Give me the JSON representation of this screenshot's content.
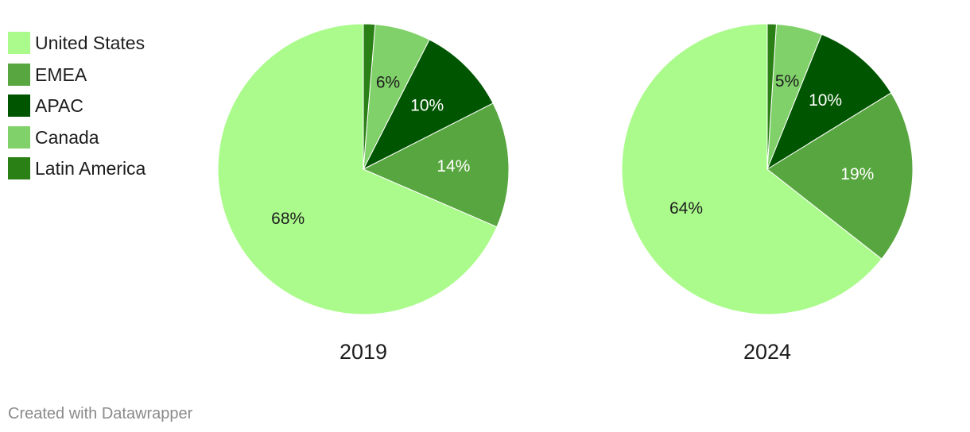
{
  "legend": {
    "items": [
      {
        "label": "United States",
        "color": "#abfb8c"
      },
      {
        "label": "EMEA",
        "color": "#58a63f"
      },
      {
        "label": "APAC",
        "color": "#005600"
      },
      {
        "label": "Canada",
        "color": "#80d16a"
      },
      {
        "label": "Latin America",
        "color": "#2a7f15"
      }
    ]
  },
  "chart_data": [
    {
      "type": "pie",
      "title": "2019",
      "labels": [
        "United States",
        "EMEA",
        "APAC",
        "Canada",
        "Latin America"
      ],
      "values": [
        68.5,
        14.0,
        10.0,
        6.2,
        1.3
      ],
      "slice_labels": [
        "68%",
        "14%",
        "10%",
        "6%",
        ""
      ],
      "colors": [
        "#abfb8c",
        "#58a63f",
        "#005600",
        "#80d16a",
        "#2a7f15"
      ],
      "label_colors": [
        "#1d1d1d",
        "#ffffff",
        "#ffffff",
        "#1d1d1d",
        "#ffffff"
      ]
    },
    {
      "type": "pie",
      "title": "2024",
      "labels": [
        "United States",
        "EMEA",
        "APAC",
        "Canada",
        "Latin America"
      ],
      "values": [
        64.4,
        19.4,
        10.1,
        5.1,
        1.0
      ],
      "slice_labels": [
        "64%",
        "19%",
        "10%",
        "5%",
        ""
      ],
      "colors": [
        "#abfb8c",
        "#58a63f",
        "#005600",
        "#80d16a",
        "#2a7f15"
      ],
      "label_colors": [
        "#1d1d1d",
        "#ffffff",
        "#ffffff",
        "#1d1d1d",
        "#ffffff"
      ]
    }
  ],
  "footer": {
    "credit": "Created with Datawrapper"
  }
}
